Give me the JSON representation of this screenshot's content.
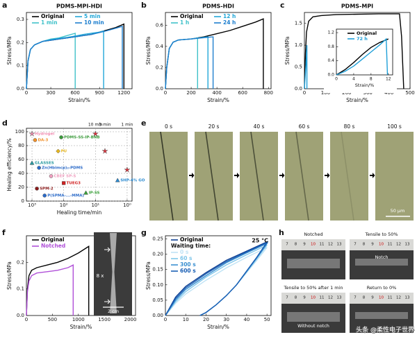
{
  "chart_data": [
    {
      "type": "line",
      "title": "PDMS-MPI-HDI",
      "xlabel": "Strain/%",
      "ylabel": "Stress/MPa",
      "xlim": [
        0,
        1300
      ],
      "ylim": [
        0,
        0.33
      ],
      "xticks": [
        0,
        300,
        600,
        900,
        1200
      ],
      "yticks": [
        {
          "value": 0,
          "label": "0.0"
        },
        0.1,
        0.2,
        0.3
      ],
      "series": [
        {
          "name": "Original",
          "color": "#000000",
          "x": [
            0,
            20,
            50,
            100,
            200,
            300,
            400,
            500,
            600,
            700,
            800,
            900,
            1000,
            1100,
            1200,
            1200
          ],
          "values": [
            0,
            0.12,
            0.17,
            0.19,
            0.205,
            0.21,
            0.215,
            0.22,
            0.225,
            0.23,
            0.235,
            0.245,
            0.255,
            0.265,
            0.28,
            0
          ]
        },
        {
          "name": "1 min",
          "color": "#3fc1c9",
          "x": [
            0,
            20,
            50,
            100,
            200,
            300,
            400,
            500,
            600,
            600
          ],
          "values": [
            0,
            0.12,
            0.17,
            0.19,
            0.205,
            0.215,
            0.22,
            0.23,
            0.24,
            0
          ]
        },
        {
          "name": "5 min",
          "color": "#22a7d8",
          "x": [
            0,
            20,
            50,
            100,
            200,
            300,
            400,
            500,
            600,
            700,
            800,
            900,
            950,
            950
          ],
          "values": [
            0,
            0.12,
            0.17,
            0.19,
            0.205,
            0.212,
            0.218,
            0.222,
            0.228,
            0.235,
            0.24,
            0.245,
            0.25,
            0
          ]
        },
        {
          "name": "10 min",
          "color": "#1e7fcf",
          "x": [
            0,
            20,
            50,
            100,
            200,
            300,
            400,
            500,
            600,
            700,
            800,
            900,
            1000,
            1100,
            1180,
            1180
          ],
          "values": [
            0,
            0.12,
            0.17,
            0.19,
            0.205,
            0.21,
            0.215,
            0.22,
            0.225,
            0.23,
            0.235,
            0.243,
            0.252,
            0.262,
            0.27,
            0
          ]
        }
      ]
    },
    {
      "type": "line",
      "title": "PDMS-HDI",
      "xlabel": "Strain/%",
      "ylabel": "Stress/MPa",
      "xlim": [
        0,
        820
      ],
      "ylim": [
        0,
        0.72
      ],
      "xticks": [
        0,
        200,
        400,
        600,
        800
      ],
      "yticks": [
        {
          "value": 0,
          "label": "0.0"
        },
        0.2,
        0.4,
        0.6
      ],
      "series": [
        {
          "name": "Original",
          "color": "#000000",
          "x": [
            0,
            10,
            30,
            60,
            100,
            200,
            300,
            400,
            500,
            600,
            700,
            760,
            760
          ],
          "values": [
            0,
            0.2,
            0.38,
            0.44,
            0.46,
            0.47,
            0.49,
            0.52,
            0.55,
            0.59,
            0.63,
            0.66,
            0
          ]
        },
        {
          "name": "1 h",
          "color": "#3fc1c9",
          "x": [
            0,
            10,
            30,
            60,
            100,
            200,
            250,
            250
          ],
          "values": [
            0,
            0.2,
            0.38,
            0.44,
            0.46,
            0.47,
            0.48,
            0
          ]
        },
        {
          "name": "12 h",
          "color": "#22a7d8",
          "x": [
            0,
            10,
            30,
            60,
            100,
            200,
            330,
            330
          ],
          "values": [
            0,
            0.2,
            0.38,
            0.44,
            0.46,
            0.47,
            0.49,
            0
          ]
        },
        {
          "name": "24 h",
          "color": "#1e7fcf",
          "x": [
            0,
            10,
            30,
            60,
            100,
            200,
            370,
            370
          ],
          "values": [
            0,
            0.2,
            0.38,
            0.44,
            0.46,
            0.47,
            0.49,
            0
          ]
        }
      ]
    },
    {
      "type": "line",
      "title": "PDMS-MPI",
      "xlabel": "Strain/%",
      "ylabel": "Stress/MPa",
      "xlim": [
        0,
        500
      ],
      "ylim": [
        0,
        1.75
      ],
      "xticks": [
        0,
        100,
        200,
        300,
        400,
        500
      ],
      "yticks": [
        {
          "value": 0,
          "label": "0.0"
        },
        0.5,
        {
          "value": 1,
          "label": "1.0"
        },
        1.5
      ],
      "series": [
        {
          "color": "#000000",
          "x": [
            0,
            5,
            10,
            20,
            40,
            80,
            150,
            250,
            350,
            450,
            460,
            470
          ],
          "values": [
            0,
            0.8,
            1.3,
            1.55,
            1.65,
            1.68,
            1.7,
            1.71,
            1.72,
            1.72,
            1.2,
            0
          ]
        },
        {
          "color": "#1e9fd8",
          "x": [
            0,
            4,
            8,
            12,
            12
          ],
          "values": [
            0,
            0.3,
            0.6,
            1.0,
            0
          ]
        }
      ]
    },
    {
      "type": "line",
      "xlabel": "Strain/%",
      "xlim": [
        0,
        13
      ],
      "ylim": [
        0,
        1.3
      ],
      "xticks": [
        0,
        4,
        8,
        12
      ],
      "yticks": [
        {
          "value": 0,
          "label": "0.0"
        },
        0.4,
        0.8,
        1.2
      ],
      "series": [
        {
          "name": "Original",
          "color": "#000000",
          "x": [
            0,
            2,
            4,
            6,
            8,
            10,
            12
          ],
          "values": [
            0,
            0.15,
            0.35,
            0.58,
            0.78,
            0.92,
            1.02
          ]
        },
        {
          "name": "72 h",
          "color": "#1e9fd8",
          "x": [
            0,
            2,
            4,
            6,
            8,
            10,
            11.5,
            11.8
          ],
          "values": [
            0,
            0.1,
            0.25,
            0.45,
            0.65,
            0.85,
            1.02,
            0
          ]
        }
      ]
    },
    {
      "type": "scatter",
      "xlabel": "Healing time/min",
      "ylabel": "Healing efficiency/%",
      "xscale": "log",
      "xlim": [
        1500,
        0.7
      ],
      "ylim": [
        0,
        105
      ],
      "xticks": [
        {
          "value": 1000,
          "label": "10³"
        },
        {
          "value": 100,
          "label": "10²"
        },
        {
          "value": 10,
          "label": "10¹"
        },
        {
          "value": 1,
          "label": "10⁰"
        }
      ],
      "yticks": [
        0,
        20,
        40,
        60,
        80,
        100
      ],
      "grid": true,
      "top_labels": [
        {
          "x": 10,
          "text": "10 min"
        },
        {
          "x": 5,
          "text": "5 min"
        },
        {
          "x": 1,
          "text": "1 min"
        }
      ],
      "series": [
        {
          "color": "#e0303a",
          "marker": "star",
          "x": [
            10,
            5,
            1
          ],
          "values": [
            97,
            72,
            45
          ]
        },
        {
          "name": "Hydrogel",
          "color": "#f08cb0",
          "marker": "star",
          "x": [
            1000
          ],
          "values": [
            97
          ]
        },
        {
          "name": "DA-3",
          "color": "#f0902a",
          "marker": "circle",
          "x": [
            800
          ],
          "values": [
            88
          ]
        },
        {
          "name": "PDMS-SS-IP-BNB",
          "color": "#3a9a3a",
          "marker": "circle",
          "x": [
            120
          ],
          "values": [
            92
          ]
        },
        {
          "name": "PU",
          "color": "#e8b820",
          "marker": "diamond",
          "x": [
            150
          ],
          "values": [
            72
          ]
        },
        {
          "name": "GLASSES",
          "color": "#2a9aa0",
          "marker": "triangle",
          "x": [
            1000
          ],
          "values": [
            55
          ]
        },
        {
          "name": "Zn(Hbimcp)₂-PDMS",
          "color": "#2a6ac8",
          "marker": "circle",
          "x": [
            600
          ],
          "values": [
            48
          ]
        },
        {
          "name": "CBEF SP-S",
          "color": "#f0a0c0",
          "marker": "circle",
          "x": [
            250
          ],
          "values": [
            36
          ]
        },
        {
          "name": "TUEG3",
          "color": "#d02020",
          "marker": "square",
          "x": [
            100
          ],
          "values": [
            26
          ]
        },
        {
          "name": "SPM-2",
          "color": "#8a1a1a",
          "marker": "circle",
          "x": [
            700
          ],
          "values": [
            18
          ]
        },
        {
          "name": "P(SPMA-...-MMA)",
          "color": "#2a6ac8",
          "marker": "circle",
          "x": [
            400
          ],
          "values": [
            8
          ]
        },
        {
          "name": "IP-SS",
          "color": "#3aa03a",
          "marker": "triangle",
          "x": [
            20
          ],
          "values": [
            12
          ]
        },
        {
          "name": "SHP-4% GO",
          "color": "#2a8ad0",
          "marker": "triangle",
          "x": [
            2
          ],
          "values": [
            30
          ]
        }
      ]
    },
    {
      "type": "line",
      "xlabel": "Strain/%",
      "ylabel": "Stress/MPa",
      "xlim": [
        0,
        2100
      ],
      "ylim": [
        0,
        0.3
      ],
      "xticks": [
        0,
        500,
        1000,
        1500,
        2000
      ],
      "yticks": [
        {
          "value": 0,
          "label": "0.0"
        },
        0.1,
        0.2
      ],
      "series": [
        {
          "name": "Original",
          "color": "#000000",
          "x": [
            0,
            20,
            50,
            100,
            200,
            400,
            600,
            800,
            1000,
            1200,
            1200
          ],
          "values": [
            0,
            0.1,
            0.15,
            0.17,
            0.18,
            0.19,
            0.2,
            0.215,
            0.235,
            0.26,
            0
          ]
        },
        {
          "name": "Notched",
          "color": "#b050d8",
          "x": [
            0,
            20,
            50,
            100,
            200,
            400,
            600,
            800,
            900,
            900
          ],
          "values": [
            0,
            0.09,
            0.13,
            0.15,
            0.16,
            0.165,
            0.17,
            0.18,
            0.19,
            0
          ]
        }
      ]
    },
    {
      "type": "line",
      "xlabel": "Strain/%",
      "ylabel": "Stress/MPa",
      "legend_title": "Waiting time:",
      "annotation": "25 °C",
      "xlim": [
        0,
        52
      ],
      "ylim": [
        0,
        0.26
      ],
      "xticks": [
        0,
        10,
        20,
        30,
        40,
        50
      ],
      "yticks": [
        {
          "value": 0,
          "label": "0.00"
        },
        {
          "value": 0.05,
          "label": "0.05"
        },
        {
          "value": 0.1,
          "label": "0.10"
        },
        {
          "value": 0.15,
          "label": "0.15"
        },
        {
          "value": 0.2,
          "label": "0.20"
        },
        {
          "value": 0.25,
          "label": "0.25"
        }
      ],
      "series": [
        {
          "name": "Original",
          "color": "#0b3d91",
          "x": [
            0,
            5,
            10,
            20,
            30,
            40,
            50,
            45,
            40,
            35,
            30,
            25,
            20,
            17
          ],
          "values": [
            0,
            0.06,
            0.095,
            0.14,
            0.18,
            0.21,
            0.24,
            0.19,
            0.145,
            0.1,
            0.065,
            0.035,
            0.01,
            0
          ]
        },
        {
          "name": "0 s",
          "color": "#bfe3f5",
          "x": [
            0,
            5,
            10,
            20,
            30,
            40,
            50,
            45,
            40,
            35,
            30,
            25,
            20,
            17
          ],
          "values": [
            0,
            0.04,
            0.07,
            0.115,
            0.155,
            0.19,
            0.222,
            0.18,
            0.14,
            0.1,
            0.065,
            0.035,
            0.01,
            0
          ]
        },
        {
          "name": "60 s",
          "color": "#7fc6ea",
          "x": [
            0,
            5,
            10,
            20,
            30,
            40,
            50,
            45,
            40,
            35,
            30,
            25,
            20,
            17
          ],
          "values": [
            0,
            0.045,
            0.078,
            0.125,
            0.165,
            0.198,
            0.23,
            0.185,
            0.142,
            0.1,
            0.065,
            0.035,
            0.01,
            0
          ]
        },
        {
          "name": "300 s",
          "color": "#3a8fd0",
          "x": [
            0,
            5,
            10,
            20,
            30,
            40,
            50,
            45,
            40,
            35,
            30,
            25,
            20,
            17
          ],
          "values": [
            0,
            0.05,
            0.085,
            0.13,
            0.172,
            0.204,
            0.235,
            0.188,
            0.144,
            0.1,
            0.065,
            0.035,
            0.01,
            0
          ]
        },
        {
          "name": "600 s",
          "color": "#1a5fb4",
          "x": [
            0,
            5,
            10,
            20,
            30,
            40,
            50,
            45,
            40,
            35,
            30,
            25,
            20,
            17
          ],
          "values": [
            0,
            0.055,
            0.09,
            0.136,
            0.176,
            0.207,
            0.238,
            0.19,
            0.145,
            0.1,
            0.065,
            0.035,
            0.01,
            0
          ]
        }
      ]
    }
  ],
  "panel_labels": [
    "a",
    "b",
    "c",
    "d",
    "e",
    "f",
    "g",
    "h"
  ],
  "panel_e": {
    "times": [
      "0 s",
      "20 s",
      "40 s",
      "60 s",
      "80 s",
      "100 s"
    ],
    "scale_bar": "50 μm"
  },
  "panel_f_photo": {
    "ratio": "8 x",
    "scale_bar": "2 cm"
  },
  "panel_h": {
    "captions": [
      "Notched",
      "Tensile to 50%",
      "Tensile to 50% after 1 min",
      "Return to 0%"
    ],
    "notch": "Notch",
    "without_notch": "Without notch",
    "ruler": [
      "7",
      "8",
      "9",
      "10",
      "11",
      "12",
      "13"
    ]
  },
  "watermark": "头条 @柔性电子世界"
}
